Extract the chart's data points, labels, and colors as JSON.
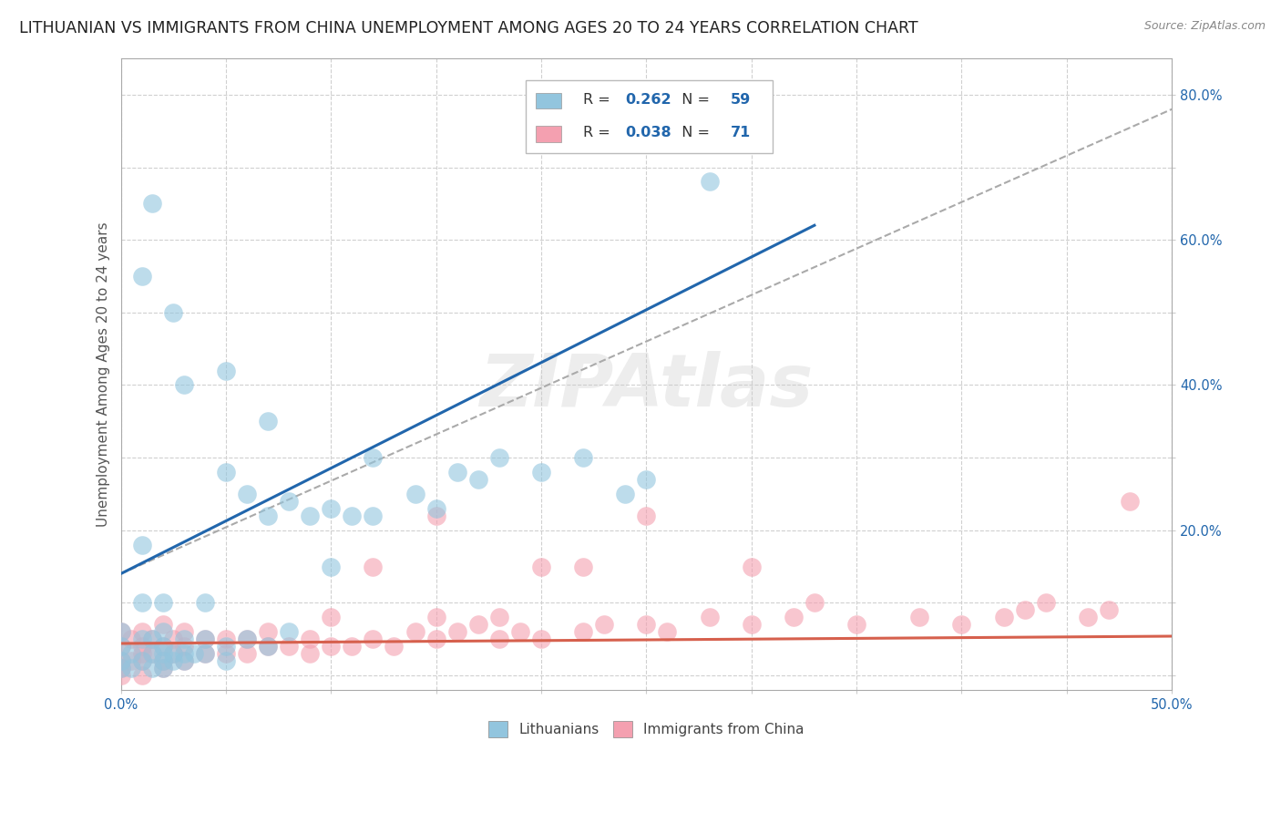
{
  "title": "LITHUANIAN VS IMMIGRANTS FROM CHINA UNEMPLOYMENT AMONG AGES 20 TO 24 YEARS CORRELATION CHART",
  "source": "Source: ZipAtlas.com",
  "ylabel": "Unemployment Among Ages 20 to 24 years",
  "xlim": [
    0.0,
    0.5
  ],
  "ylim": [
    -0.02,
    0.85
  ],
  "series1_label": "Lithuanians",
  "series2_label": "Immigrants from China",
  "series1_color": "#92c5de",
  "series2_color": "#f4a0b0",
  "series1_line_color": "#2166ac",
  "series2_line_color": "#d6604d",
  "series1_R": "0.262",
  "series1_N": "59",
  "series2_R": "0.038",
  "series2_N": "71",
  "legend_text_color": "#333333",
  "stat_color": "#2166ac",
  "stat2_color": "#d6604d",
  "watermark": "ZIPAtlas",
  "background_color": "#ffffff",
  "grid_color": "#d0d0d0",
  "title_fontsize": 12.5,
  "axis_label_fontsize": 11,
  "tick_fontsize": 10.5,
  "scatter1_x": [
    0.0,
    0.0,
    0.0,
    0.0,
    0.005,
    0.005,
    0.01,
    0.01,
    0.01,
    0.01,
    0.01,
    0.015,
    0.015,
    0.015,
    0.015,
    0.02,
    0.02,
    0.02,
    0.02,
    0.02,
    0.02,
    0.025,
    0.025,
    0.025,
    0.03,
    0.03,
    0.03,
    0.03,
    0.035,
    0.04,
    0.04,
    0.04,
    0.05,
    0.05,
    0.05,
    0.05,
    0.06,
    0.06,
    0.07,
    0.07,
    0.07,
    0.08,
    0.08,
    0.09,
    0.1,
    0.1,
    0.11,
    0.12,
    0.12,
    0.14,
    0.15,
    0.16,
    0.17,
    0.18,
    0.2,
    0.22,
    0.24,
    0.25,
    0.28
  ],
  "scatter1_y": [
    0.01,
    0.02,
    0.04,
    0.06,
    0.01,
    0.03,
    0.02,
    0.05,
    0.1,
    0.18,
    0.55,
    0.01,
    0.03,
    0.05,
    0.65,
    0.01,
    0.02,
    0.03,
    0.04,
    0.06,
    0.1,
    0.02,
    0.03,
    0.5,
    0.02,
    0.03,
    0.05,
    0.4,
    0.03,
    0.03,
    0.05,
    0.1,
    0.02,
    0.04,
    0.28,
    0.42,
    0.05,
    0.25,
    0.04,
    0.22,
    0.35,
    0.06,
    0.24,
    0.22,
    0.15,
    0.23,
    0.22,
    0.22,
    0.3,
    0.25,
    0.23,
    0.28,
    0.27,
    0.3,
    0.28,
    0.3,
    0.25,
    0.27,
    0.68
  ],
  "scatter2_x": [
    0.0,
    0.0,
    0.0,
    0.0,
    0.0,
    0.005,
    0.005,
    0.01,
    0.01,
    0.01,
    0.01,
    0.01,
    0.015,
    0.015,
    0.02,
    0.02,
    0.02,
    0.02,
    0.025,
    0.025,
    0.03,
    0.03,
    0.03,
    0.04,
    0.04,
    0.05,
    0.05,
    0.06,
    0.06,
    0.07,
    0.07,
    0.08,
    0.09,
    0.09,
    0.1,
    0.1,
    0.11,
    0.12,
    0.12,
    0.13,
    0.14,
    0.15,
    0.15,
    0.15,
    0.16,
    0.17,
    0.18,
    0.18,
    0.19,
    0.2,
    0.2,
    0.22,
    0.22,
    0.23,
    0.25,
    0.25,
    0.26,
    0.28,
    0.3,
    0.3,
    0.32,
    0.33,
    0.35,
    0.38,
    0.4,
    0.42,
    0.43,
    0.44,
    0.46,
    0.47,
    0.48
  ],
  "scatter2_y": [
    0.0,
    0.01,
    0.02,
    0.04,
    0.06,
    0.02,
    0.05,
    0.0,
    0.02,
    0.03,
    0.04,
    0.06,
    0.03,
    0.05,
    0.01,
    0.02,
    0.04,
    0.07,
    0.03,
    0.05,
    0.02,
    0.04,
    0.06,
    0.03,
    0.05,
    0.03,
    0.05,
    0.03,
    0.05,
    0.04,
    0.06,
    0.04,
    0.03,
    0.05,
    0.04,
    0.08,
    0.04,
    0.05,
    0.15,
    0.04,
    0.06,
    0.05,
    0.08,
    0.22,
    0.06,
    0.07,
    0.05,
    0.08,
    0.06,
    0.05,
    0.15,
    0.06,
    0.15,
    0.07,
    0.07,
    0.22,
    0.06,
    0.08,
    0.07,
    0.15,
    0.08,
    0.1,
    0.07,
    0.08,
    0.07,
    0.08,
    0.09,
    0.1,
    0.08,
    0.09,
    0.24
  ],
  "trendline1_x": [
    0.0,
    0.33
  ],
  "trendline1_y": [
    0.14,
    0.62
  ],
  "trendline2_x": [
    0.0,
    0.5
  ],
  "trendline2_y": [
    0.044,
    0.054
  ],
  "dashed_line_x": [
    0.0,
    0.5
  ],
  "dashed_line_y": [
    0.14,
    0.78
  ]
}
